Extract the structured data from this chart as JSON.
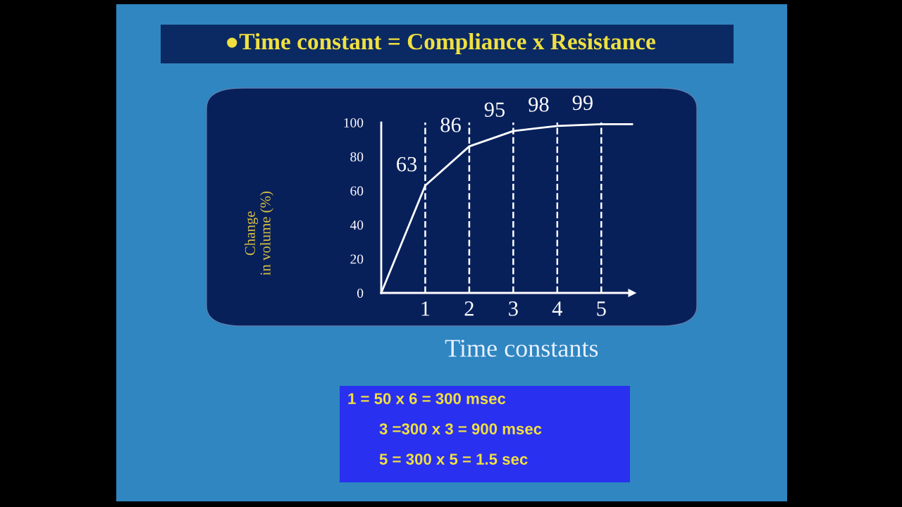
{
  "chart_data": {
    "type": "line",
    "title": "●Time constant = Compliance x Resistance",
    "xlabel": "Time constants",
    "ylabel": "Change\nin volume (%)",
    "x": [
      0,
      1,
      2,
      3,
      4,
      5,
      5.7
    ],
    "series": [
      {
        "color": "#ffffff",
        "values": [
          0,
          63,
          86,
          95,
          98,
          99,
          99
        ],
        "value_labels": [
          null,
          "63",
          "86",
          "95",
          "98",
          "99",
          null
        ]
      }
    ],
    "xlim": [
      0,
      5.7
    ],
    "xticks": [
      1,
      2,
      3,
      4,
      5
    ],
    "ylim": [
      0,
      100
    ],
    "yticks": [
      0,
      20,
      40,
      60,
      80,
      100
    ],
    "ref_lines": [
      {
        "axis": "x",
        "value": 1,
        "color": "#ffffff",
        "line_style": "dashed"
      },
      {
        "axis": "x",
        "value": 2,
        "color": "#ffffff",
        "line_style": "dashed"
      },
      {
        "axis": "x",
        "value": 3,
        "color": "#ffffff",
        "line_style": "dashed"
      },
      {
        "axis": "x",
        "value": 4,
        "color": "#ffffff",
        "line_style": "dashed"
      },
      {
        "axis": "x",
        "value": 5,
        "color": "#ffffff",
        "line_style": "dashed"
      }
    ],
    "annotations": [
      "1 = 50 x 6 = 300 msec",
      "3 =300 x 3 = 900 msec",
      "5 = 300 x 5 = 1.5 sec"
    ],
    "grid": false,
    "marker": "none",
    "line_style": "solid"
  }
}
